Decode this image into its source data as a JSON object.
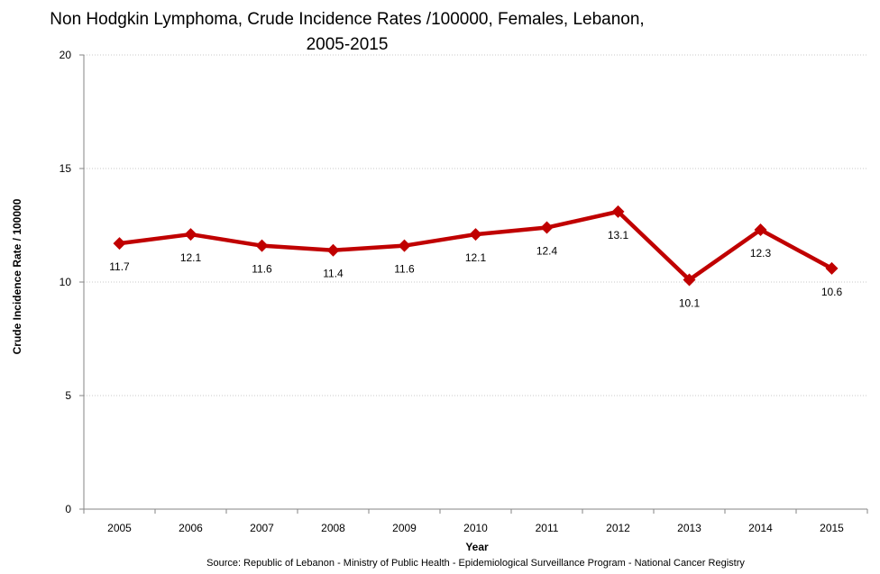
{
  "chart_data": {
    "type": "line",
    "title_line1": "Non Hodgkin Lymphoma, Crude Incidence Rates /100000,  Females, Lebanon,",
    "title_line2": "2005-2015",
    "xlabel": "Year",
    "ylabel": "Crude Incidence Rate / 100000",
    "categories": [
      "2005",
      "2006",
      "2007",
      "2008",
      "2009",
      "2010",
      "2011",
      "2012",
      "2013",
      "2014",
      "2015"
    ],
    "series": [
      {
        "values": [
          11.7,
          12.1,
          11.6,
          11.4,
          11.6,
          12.1,
          12.4,
          13.1,
          10.1,
          12.3,
          10.6
        ]
      }
    ],
    "data_labels": [
      "11.7",
      "12.1",
      "11.6",
      "11.4",
      "11.6",
      "12.1",
      "12.4",
      "13.1",
      "10.1",
      "12.3",
      "10.6"
    ],
    "yticks": [
      "0",
      "5",
      "10",
      "15",
      "20"
    ],
    "ylim": [
      0,
      20
    ],
    "grid": true,
    "line_color": "#c00000",
    "source": "Source:  Republic of Lebanon - Ministry of Public Health - Epidemiological Surveillance Program - National Cancer Registry"
  }
}
